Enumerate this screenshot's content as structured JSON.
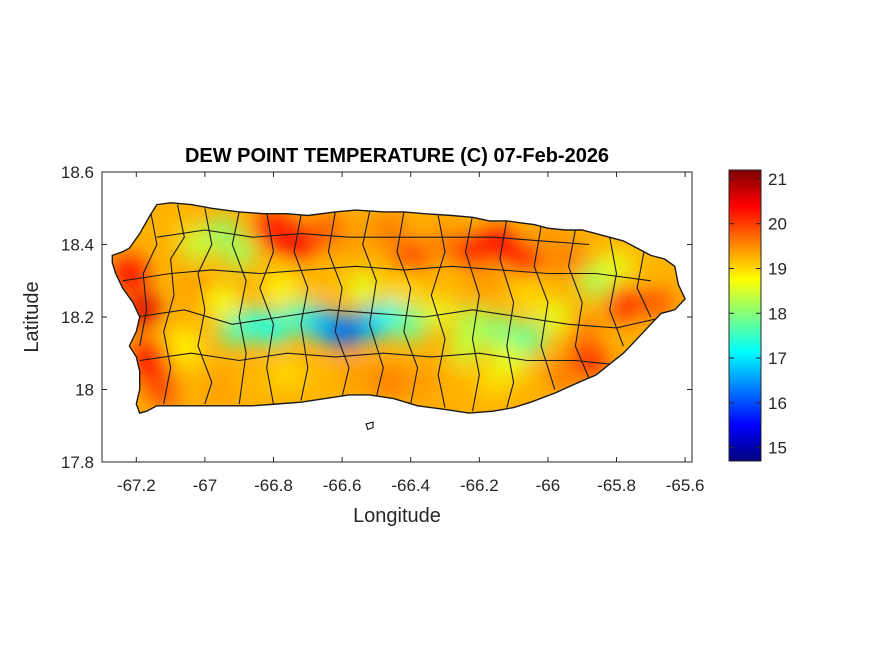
{
  "map": {
    "title": "DEW POINT TEMPERATURE (C) 07-Feb-2026",
    "xlabel": "Longitude",
    "ylabel": "Latitude",
    "xlim": [
      -67.3,
      -65.58
    ],
    "ylim": [
      17.8,
      18.6
    ],
    "xticks": [
      {
        "value": -67.2,
        "label": "-67.2"
      },
      {
        "value": -67.0,
        "label": "-67"
      },
      {
        "value": -66.8,
        "label": "-66.8"
      },
      {
        "value": -66.6,
        "label": "-66.6"
      },
      {
        "value": -66.4,
        "label": "-66.4"
      },
      {
        "value": -66.2,
        "label": "-66.2"
      },
      {
        "value": -66.0,
        "label": "-66"
      },
      {
        "value": -65.8,
        "label": "-65.8"
      },
      {
        "value": -65.6,
        "label": "-65.6"
      }
    ],
    "yticks": [
      {
        "value": 17.8,
        "label": "17.8"
      },
      {
        "value": 18.0,
        "label": "18"
      },
      {
        "value": 18.2,
        "label": "18.2"
      },
      {
        "value": 18.4,
        "label": "18.4"
      },
      {
        "value": 18.6,
        "label": "18.6"
      }
    ],
    "colormap": "jet",
    "colorbar": {
      "range": [
        14.7,
        21.2
      ],
      "ticks": [
        {
          "value": 15,
          "label": "15"
        },
        {
          "value": 16,
          "label": "16"
        },
        {
          "value": 17,
          "label": "17"
        },
        {
          "value": 18,
          "label": "18"
        },
        {
          "value": 19,
          "label": "19"
        },
        {
          "value": 20,
          "label": "20"
        },
        {
          "value": 21,
          "label": "21"
        }
      ]
    },
    "colors": {
      "border": "#1a1a1a",
      "axis": "#262626",
      "background": "#ffffff"
    }
  }
}
